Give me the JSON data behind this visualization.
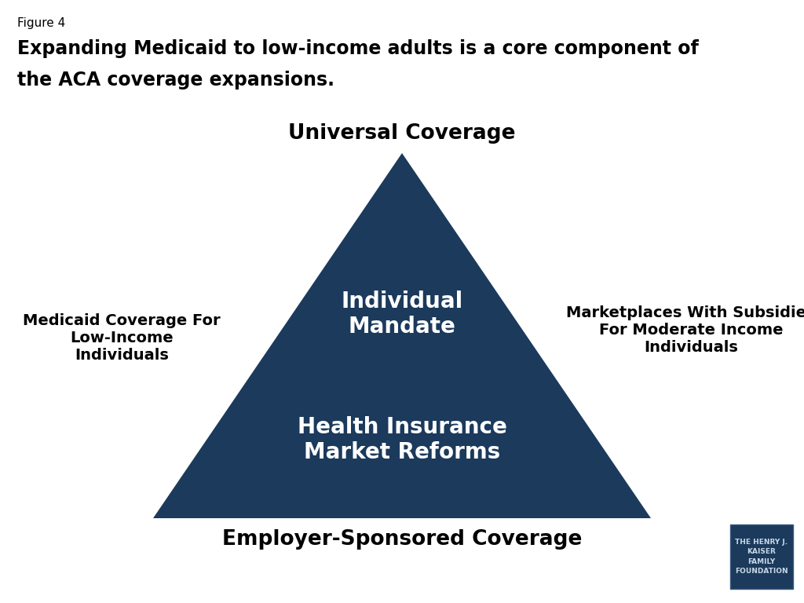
{
  "figure_label": "Figure 4",
  "title_line1": "Expanding Medicaid to low-income adults is a core component of",
  "title_line2": "the ACA coverage expansions.",
  "triangle_color": "#1b3a5c",
  "top_label": "Universal Coverage",
  "bottom_label": "Employer-Sponsored Coverage",
  "left_label": "Medicaid Coverage For\nLow-Income\nIndividuals",
  "right_label": "Marketplaces With Subsidies\nFor Moderate Income\nIndividuals",
  "inner_top_label": "Individual\nMandate",
  "inner_bottom_label": "Health Insurance\nMarket Reforms",
  "text_color_white": "#ffffff",
  "text_color_black": "#000000",
  "background_color": "#ffffff",
  "kaiser_box_color": "#1b3a5c",
  "kaiser_text": "THE HENRY J.\nKAISER\nFAMILY\nFOUNDATION",
  "fig_width": 10.24,
  "fig_height": 7.68,
  "dpi": 100
}
